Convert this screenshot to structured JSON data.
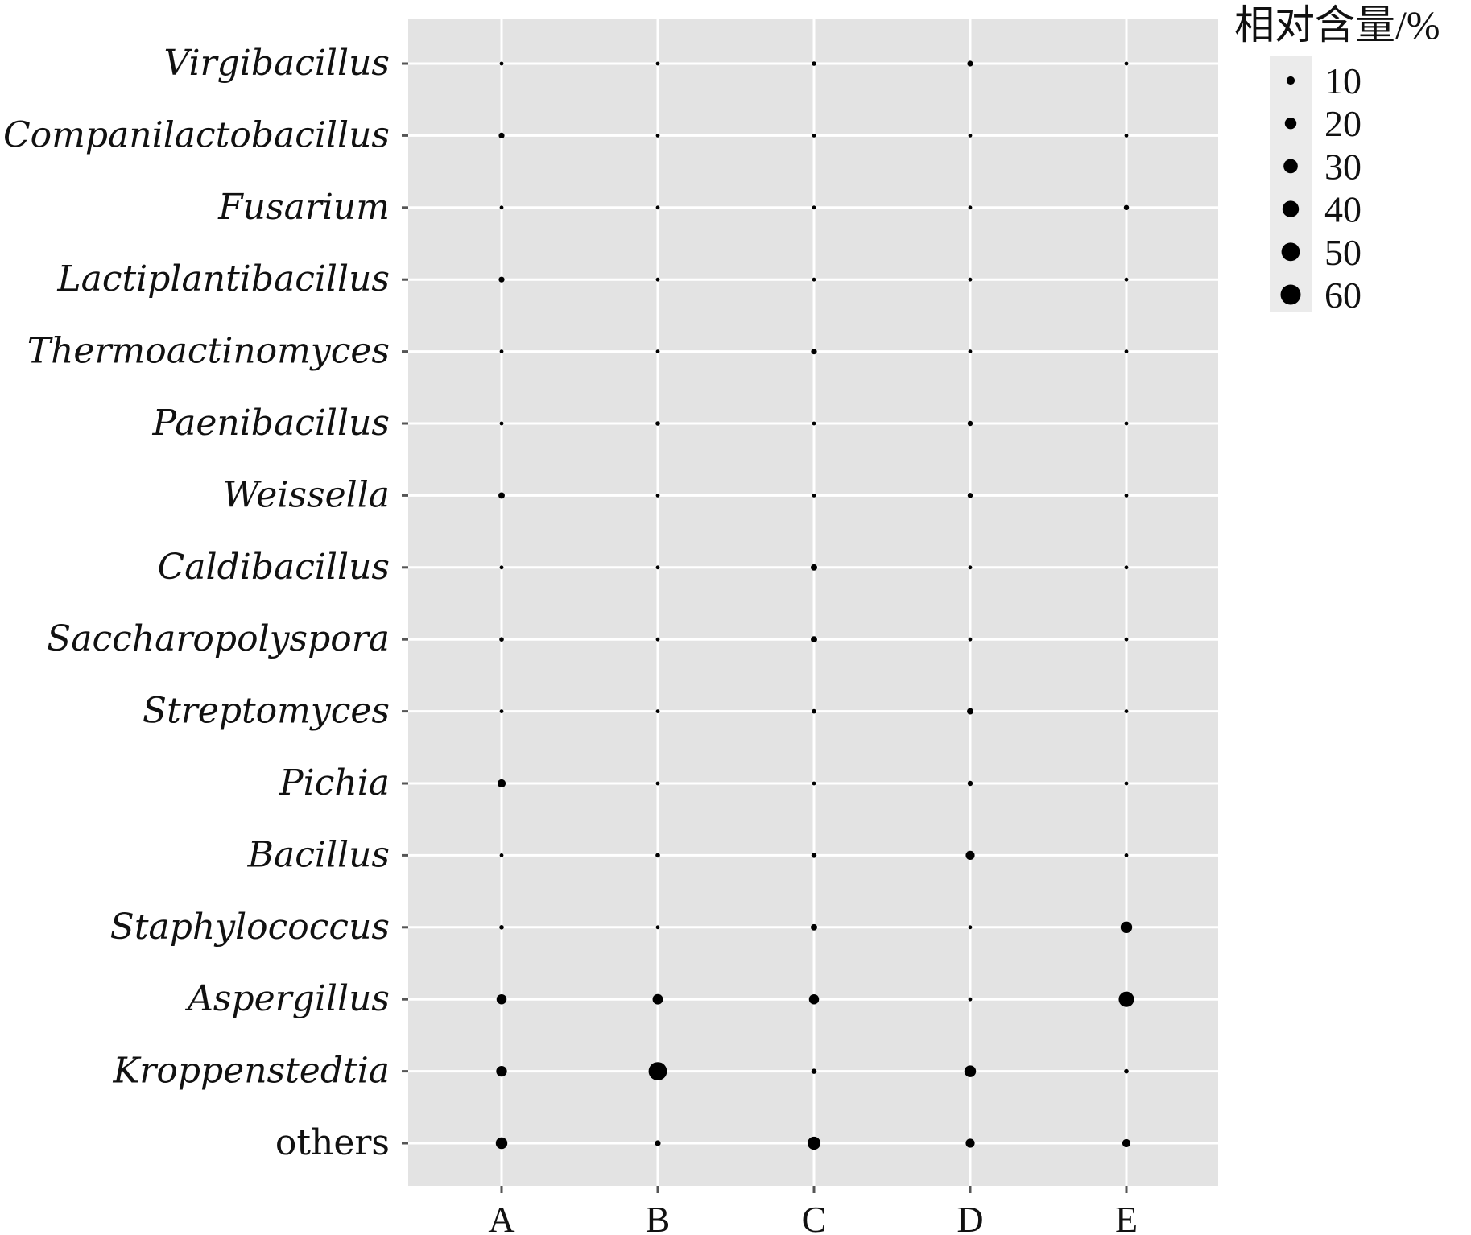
{
  "chart_data": {
    "type": "scatter",
    "subtype": "bubble",
    "title": "",
    "xlabel": "",
    "ylabel": "",
    "x_categories": [
      "A",
      "B",
      "C",
      "D",
      "E"
    ],
    "y_categories": [
      {
        "label": "Virgibacillus",
        "italic": true
      },
      {
        "label": "Companilactobacillus",
        "italic": true
      },
      {
        "label": "Fusarium",
        "italic": true
      },
      {
        "label": "Lactiplantibacillus",
        "italic": true
      },
      {
        "label": "Thermoactinomyces",
        "italic": true
      },
      {
        "label": "Paenibacillus",
        "italic": true
      },
      {
        "label": "Weissella",
        "italic": true
      },
      {
        "label": "Caldibacillus",
        "italic": true
      },
      {
        "label": "Saccharopolyspora",
        "italic": true
      },
      {
        "label": "Streptomyces",
        "italic": true
      },
      {
        "label": "Pichia",
        "italic": true
      },
      {
        "label": "Bacillus",
        "italic": true
      },
      {
        "label": "Staphylococcus",
        "italic": true
      },
      {
        "label": "Aspergillus",
        "italic": true
      },
      {
        "label": "Kroppenstedtia",
        "italic": true
      },
      {
        "label": "others",
        "italic": false
      }
    ],
    "values": [
      [
        2,
        2,
        3,
        5,
        2
      ],
      [
        5,
        2,
        1,
        2,
        1
      ],
      [
        2,
        2,
        2,
        2,
        4
      ],
      [
        5,
        1,
        1,
        2,
        1
      ],
      [
        1,
        1,
        5,
        2,
        1
      ],
      [
        2,
        3,
        2,
        4,
        2
      ],
      [
        6,
        2,
        1,
        4,
        1
      ],
      [
        1,
        2,
        6,
        2,
        2
      ],
      [
        3,
        2,
        6,
        2,
        2
      ],
      [
        2,
        2,
        3,
        6,
        2
      ],
      [
        10,
        1,
        1,
        4,
        1
      ],
      [
        2,
        3,
        4,
        12,
        2
      ],
      [
        3,
        2,
        6,
        2,
        20
      ],
      [
        15,
        16,
        15,
        2,
        35
      ],
      [
        17,
        50,
        4,
        20,
        3
      ],
      [
        20,
        5,
        25,
        12,
        10
      ]
    ],
    "size_legend": {
      "title": "相对含量/%",
      "breaks": [
        10,
        20,
        30,
        40,
        50,
        60
      ],
      "labels": [
        "10",
        "20",
        "30",
        "40",
        "50",
        "60"
      ],
      "position": "top-right"
    },
    "grid": true,
    "colors": {
      "panel": "#e3e3e3",
      "grid": "#ffffff",
      "point": "#000000",
      "tick": "#555555",
      "text": "#111111"
    }
  }
}
